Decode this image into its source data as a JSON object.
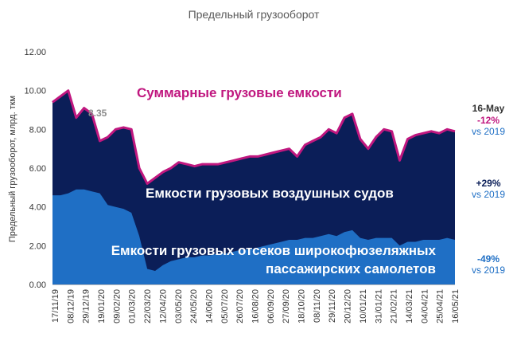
{
  "chart_data": {
    "type": "area",
    "title": "Предельный грузооборот",
    "ylabel": "Предельный грузооборот, млрд. ткм",
    "ylim": [
      0,
      12
    ],
    "y_ticks": [
      "0.00",
      "2.00",
      "4.00",
      "6.00",
      "8.00",
      "10.00",
      "12.00"
    ],
    "x_labels": [
      "17/11/19",
      "08/12/19",
      "29/12/19",
      "19/01/20",
      "09/02/20",
      "01/03/20",
      "22/03/20",
      "12/04/20",
      "03/05/20",
      "24/05/20",
      "14/06/20",
      "05/07/20",
      "26/07/20",
      "16/08/20",
      "06/09/20",
      "27/09/20",
      "18/10/20",
      "08/11/20",
      "29/11/20",
      "20/12/20",
      "10/01/21",
      "31/01/21",
      "21/02/21",
      "14/03/21",
      "04/04/21",
      "25/04/21",
      "16/05/21"
    ],
    "series": [
      {
        "name": "Суммарные грузовые емкости",
        "color": "#c0177f",
        "values": [
          9.4,
          9.7,
          10.0,
          8.6,
          9.1,
          8.8,
          7.4,
          7.6,
          8.0,
          8.1,
          8.0,
          6.0,
          5.2,
          5.5,
          5.8,
          6.0,
          6.3,
          6.2,
          6.1,
          6.2,
          6.2,
          6.2,
          6.3,
          6.4,
          6.5,
          6.6,
          6.6,
          6.7,
          6.8,
          6.9,
          7.0,
          6.6,
          7.2,
          7.4,
          7.6,
          8.0,
          7.8,
          8.6,
          8.8,
          7.5,
          7.0,
          7.6,
          8.0,
          7.9,
          6.4,
          7.5,
          7.7,
          7.8,
          7.9,
          7.8,
          8.0,
          7.9
        ]
      },
      {
        "name": "Емкости грузовых воздушных судов",
        "color": "#0b1e58",
        "values": [
          9.4,
          9.7,
          10.0,
          8.6,
          9.1,
          8.8,
          7.4,
          7.6,
          8.0,
          8.1,
          8.0,
          6.0,
          5.2,
          5.5,
          5.8,
          6.0,
          6.3,
          6.2,
          6.1,
          6.2,
          6.2,
          6.2,
          6.3,
          6.4,
          6.5,
          6.6,
          6.6,
          6.7,
          6.8,
          6.9,
          7.0,
          6.6,
          7.2,
          7.4,
          7.6,
          8.0,
          7.8,
          8.6,
          8.8,
          7.5,
          7.0,
          7.6,
          8.0,
          7.9,
          6.4,
          7.5,
          7.7,
          7.8,
          7.9,
          7.8,
          8.0,
          7.9
        ]
      },
      {
        "name": "Емкости грузовых отсеков широкофюзеляжных пассажирских самолетов",
        "color": "#1f6fc5",
        "values": [
          4.6,
          4.6,
          4.7,
          4.9,
          4.9,
          4.8,
          4.7,
          4.1,
          4.0,
          3.9,
          3.7,
          2.5,
          0.8,
          0.7,
          1.0,
          1.2,
          1.3,
          1.4,
          1.4,
          1.5,
          1.5,
          1.6,
          1.6,
          1.7,
          1.8,
          1.8,
          1.9,
          2.0,
          2.1,
          2.2,
          2.3,
          2.3,
          2.4,
          2.4,
          2.5,
          2.6,
          2.5,
          2.7,
          2.8,
          2.4,
          2.3,
          2.4,
          2.4,
          2.4,
          2.0,
          2.2,
          2.2,
          2.3,
          2.3,
          2.3,
          2.4,
          2.3
        ]
      }
    ],
    "annotations": [
      {
        "text": "8.35"
      }
    ],
    "labels": {
      "total": "Суммарные грузовые емкости",
      "freighters": "Емкости грузовых воздушных судов",
      "belly_line1": "Емкости грузовых отсеков широкофюзеляжных",
      "belly_line2": "пассажирских самолетов"
    },
    "right_notes": {
      "date": "16-May",
      "total_change": "-12%",
      "total_vs": "vs 2019",
      "freighters_change": "+29%",
      "freighters_vs": "vs 2019",
      "belly_change": "-49%",
      "belly_vs": "vs 2019"
    },
    "colors": {
      "total_line": "#c0177f",
      "freighters": "#0b1e58",
      "belly": "#1f6fc5",
      "note_blue": "#1f6fc5",
      "note_dark": "#0b1e58",
      "note_magenta": "#c0177f"
    }
  }
}
